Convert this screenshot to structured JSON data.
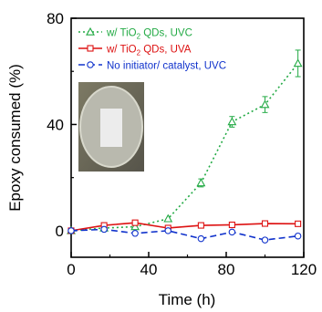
{
  "chart_data": {
    "type": "line",
    "xlabel": "Time (h)",
    "ylabel": "Epoxy consumed (%)",
    "xlim": [
      0,
      120
    ],
    "ylim": [
      -10,
      80
    ],
    "xticks": [
      "0",
      "40",
      "80",
      "120"
    ],
    "yticks": [
      "0",
      "40",
      "80"
    ],
    "grid": false,
    "legend_position": "top-left",
    "inset_photo": true,
    "series": [
      {
        "name": "w/ TiO₂ QDs, UVC",
        "legend_main": "w/ TiO",
        "legend_sub": "2",
        "legend_rest": " QDs, UVC",
        "color": "#22aa44",
        "line_style": "dotted",
        "marker": "triangle",
        "x": [
          0,
          17,
          33,
          50,
          67,
          83,
          100,
          117
        ],
        "y": [
          0,
          1,
          1.5,
          4.5,
          18,
          41,
          47.5,
          63
        ],
        "err": [
          0,
          0,
          0,
          0,
          1.5,
          2,
          3,
          5
        ]
      },
      {
        "name": "w/ TiO₂ QDs, UVA",
        "legend_main": "w/ TiO",
        "legend_sub": "2",
        "legend_rest": " QDs, UVA",
        "color": "#dd1111",
        "line_style": "solid",
        "marker": "square",
        "x": [
          0,
          17,
          33,
          50,
          67,
          83,
          100,
          117
        ],
        "y": [
          0,
          2,
          3,
          1,
          2,
          2.2,
          2.7,
          2.6
        ],
        "err": [
          0,
          0,
          0,
          0,
          0,
          0,
          0,
          0
        ]
      },
      {
        "name": "No initiator/ catalyst, UVC",
        "legend_main": "No initiator/ catalyst, UVC",
        "legend_sub": "",
        "legend_rest": "",
        "color": "#1133cc",
        "line_style": "dashed",
        "marker": "circle",
        "x": [
          0,
          17,
          33,
          50,
          67,
          83,
          100,
          117
        ],
        "y": [
          0,
          0.5,
          -1,
          0,
          -3,
          -0.5,
          -3.5,
          -2
        ],
        "err": [
          0,
          0,
          0,
          0,
          0,
          0,
          0,
          0
        ]
      }
    ]
  }
}
